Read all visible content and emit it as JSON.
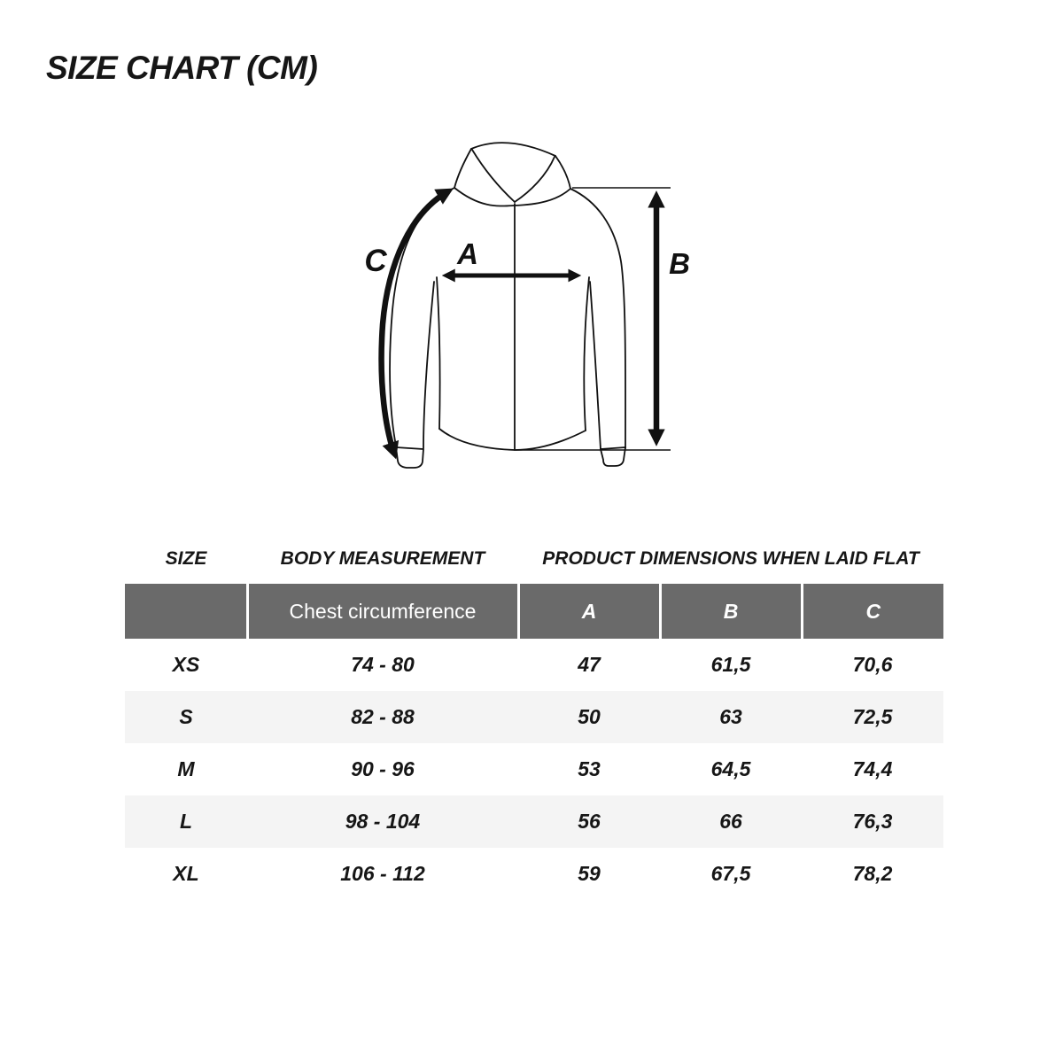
{
  "page": {
    "title": "SIZE CHART (CM)"
  },
  "diagram": {
    "label_a": "A",
    "label_b": "B",
    "label_c": "C"
  },
  "table": {
    "group_headers": {
      "size": "SIZE",
      "body": "BODY MEASUREMENT",
      "product": "PRODUCT DIMENSIONS WHEN LAID FLAT"
    },
    "columns": {
      "chest": "Chest circumference",
      "a": "A",
      "b": "B",
      "c": "C"
    },
    "rows": [
      {
        "size": "XS",
        "chest": "74 - 80",
        "a": "47",
        "b": "61,5",
        "c": "70,6"
      },
      {
        "size": "S",
        "chest": "82 - 88",
        "a": "50",
        "b": "63",
        "c": "72,5"
      },
      {
        "size": "M",
        "chest": "90 - 96",
        "a": "53",
        "b": "64,5",
        "c": "74,4"
      },
      {
        "size": "L",
        "chest": "98 - 104",
        "a": "56",
        "b": "66",
        "c": "76,3"
      },
      {
        "size": "XL",
        "chest": "106 - 112",
        "a": "59",
        "b": "67,5",
        "c": "78,2"
      }
    ]
  },
  "colors": {
    "header_bg": "#6a6a6a",
    "header_text": "#ffffff",
    "stripe_bg": "#f4f4f4",
    "line": "#111111"
  },
  "chart_data": {
    "type": "table",
    "title": "SIZE CHART (CM)",
    "units": "cm",
    "column_groups": [
      "SIZE",
      "BODY MEASUREMENT",
      "PRODUCT DIMENSIONS WHEN LAID FLAT"
    ],
    "columns": [
      "SIZE",
      "Chest circumference",
      "A",
      "B",
      "C"
    ],
    "rows": [
      [
        "XS",
        "74 - 80",
        "47",
        "61,5",
        "70,6"
      ],
      [
        "S",
        "82 - 88",
        "50",
        "63",
        "72,5"
      ],
      [
        "M",
        "90 - 96",
        "53",
        "64,5",
        "74,4"
      ],
      [
        "L",
        "98 - 104",
        "56",
        "66",
        "76,3"
      ],
      [
        "XL",
        "106 - 112",
        "59",
        "67,5",
        "78,2"
      ]
    ]
  }
}
